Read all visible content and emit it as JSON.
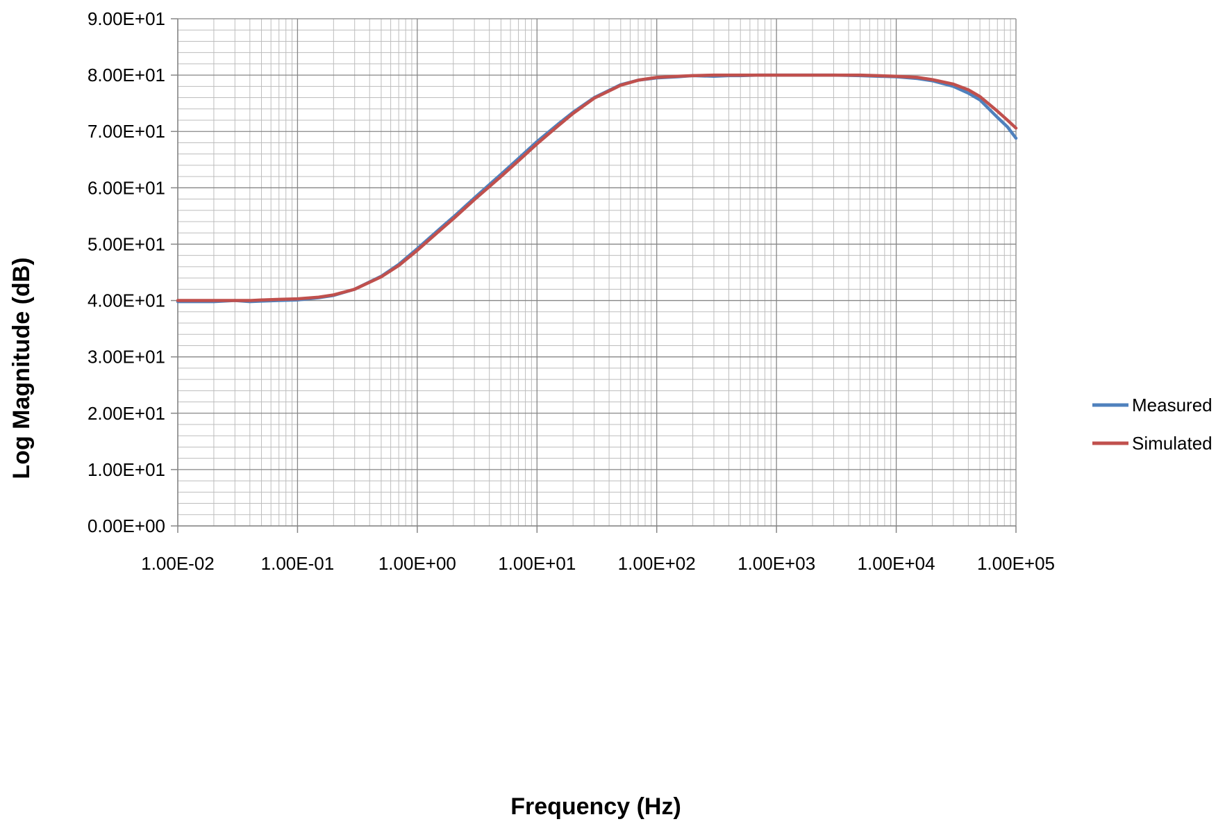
{
  "chart_data": {
    "type": "line",
    "title": "",
    "xlabel": "Frequency (Hz)",
    "ylabel": "Log Magnitude (dB)",
    "x_scale": "log",
    "xlim": [
      0.01,
      100000
    ],
    "ylim": [
      0,
      90
    ],
    "grid": true,
    "legend": "right",
    "x_ticks": [
      {
        "value": 0.01,
        "label": "1.00E-02"
      },
      {
        "value": 0.1,
        "label": "1.00E-01"
      },
      {
        "value": 1,
        "label": "1.00E+00"
      },
      {
        "value": 10,
        "label": "1.00E+01"
      },
      {
        "value": 100,
        "label": "1.00E+02"
      },
      {
        "value": 1000,
        "label": "1.00E+03"
      },
      {
        "value": 10000,
        "label": "1.00E+04"
      },
      {
        "value": 100000,
        "label": "1.00E+05"
      }
    ],
    "y_ticks": [
      {
        "value": 0,
        "label": "0.00E+00"
      },
      {
        "value": 10,
        "label": "1.00E+01"
      },
      {
        "value": 20,
        "label": "2.00E+01"
      },
      {
        "value": 30,
        "label": "3.00E+01"
      },
      {
        "value": 40,
        "label": "4.00E+01"
      },
      {
        "value": 50,
        "label": "5.00E+01"
      },
      {
        "value": 60,
        "label": "6.00E+01"
      },
      {
        "value": 70,
        "label": "7.00E+01"
      },
      {
        "value": 80,
        "label": "8.00E+01"
      },
      {
        "value": 90,
        "label": "9.00E+01"
      }
    ],
    "series": [
      {
        "name": "Measured",
        "color": "#4F81BD",
        "points": [
          [
            0.01,
            39.8
          ],
          [
            0.015,
            39.8
          ],
          [
            0.02,
            39.8
          ],
          [
            0.03,
            40.0
          ],
          [
            0.04,
            39.8
          ],
          [
            0.05,
            39.9
          ],
          [
            0.07,
            40.0
          ],
          [
            0.1,
            40.1
          ],
          [
            0.15,
            40.5
          ],
          [
            0.2,
            40.9
          ],
          [
            0.3,
            42.0
          ],
          [
            0.5,
            44.3
          ],
          [
            0.7,
            46.4
          ],
          [
            1.0,
            49.2
          ],
          [
            1.5,
            52.5
          ],
          [
            2.0,
            54.8
          ],
          [
            3.0,
            58.2
          ],
          [
            5.0,
            62.4
          ],
          [
            7.0,
            65.2
          ],
          [
            10.0,
            68.2
          ],
          [
            15.0,
            71.3
          ],
          [
            20.0,
            73.4
          ],
          [
            30.0,
            76.0
          ],
          [
            50.0,
            78.3
          ],
          [
            70.0,
            79.1
          ],
          [
            100.0,
            79.5
          ],
          [
            150.0,
            79.7
          ],
          [
            200.0,
            79.9
          ],
          [
            300.0,
            79.8
          ],
          [
            400.0,
            79.9
          ],
          [
            500.0,
            79.9
          ],
          [
            700.0,
            80.0
          ],
          [
            1000.0,
            80.0
          ],
          [
            2000.0,
            80.0
          ],
          [
            3000.0,
            80.0
          ],
          [
            5000.0,
            79.9
          ],
          [
            7000.0,
            79.8
          ],
          [
            10000.0,
            79.7
          ],
          [
            15000.0,
            79.4
          ],
          [
            20000.0,
            79.0
          ],
          [
            30000.0,
            78.0
          ],
          [
            40000.0,
            76.8
          ],
          [
            50000.0,
            75.6
          ],
          [
            70000.0,
            72.5
          ],
          [
            85000.0,
            70.8
          ],
          [
            100000.0,
            68.8
          ]
        ]
      },
      {
        "name": "Simulated",
        "color": "#C0504D",
        "points": [
          [
            0.01,
            40.0
          ],
          [
            0.015,
            40.0
          ],
          [
            0.02,
            40.0
          ],
          [
            0.03,
            40.0
          ],
          [
            0.04,
            40.0
          ],
          [
            0.05,
            40.1
          ],
          [
            0.07,
            40.2
          ],
          [
            0.1,
            40.3
          ],
          [
            0.15,
            40.6
          ],
          [
            0.2,
            41.0
          ],
          [
            0.3,
            42.0
          ],
          [
            0.5,
            44.2
          ],
          [
            0.7,
            46.2
          ],
          [
            1.0,
            48.9
          ],
          [
            1.5,
            52.2
          ],
          [
            2.0,
            54.5
          ],
          [
            3.0,
            57.9
          ],
          [
            5.0,
            62.0
          ],
          [
            7.0,
            64.8
          ],
          [
            10.0,
            67.8
          ],
          [
            15.0,
            71.0
          ],
          [
            20.0,
            73.2
          ],
          [
            30.0,
            75.9
          ],
          [
            50.0,
            78.2
          ],
          [
            70.0,
            79.1
          ],
          [
            100.0,
            79.6
          ],
          [
            150.0,
            79.8
          ],
          [
            200.0,
            79.9
          ],
          [
            300.0,
            80.0
          ],
          [
            400.0,
            80.0
          ],
          [
            500.0,
            80.0
          ],
          [
            700.0,
            80.0
          ],
          [
            1000.0,
            80.0
          ],
          [
            2000.0,
            80.0
          ],
          [
            3000.0,
            80.0
          ],
          [
            5000.0,
            80.0
          ],
          [
            7000.0,
            79.9
          ],
          [
            10000.0,
            79.8
          ],
          [
            15000.0,
            79.6
          ],
          [
            20000.0,
            79.2
          ],
          [
            30000.0,
            78.4
          ],
          [
            40000.0,
            77.4
          ],
          [
            50000.0,
            76.2
          ],
          [
            70000.0,
            73.6
          ],
          [
            85000.0,
            72.0
          ],
          [
            100000.0,
            70.6
          ]
        ]
      }
    ]
  }
}
